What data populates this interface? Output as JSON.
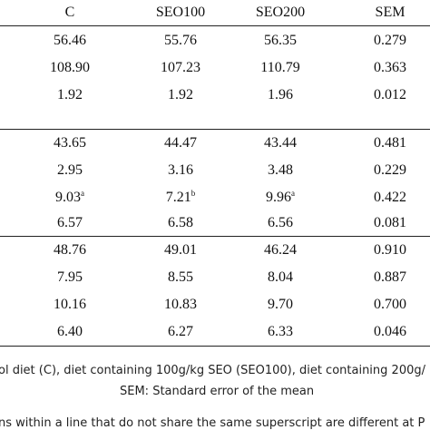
{
  "header": [
    "C",
    "SEO100",
    "SEO200",
    "SEM"
  ],
  "section1": [
    [
      "56.46",
      "55.76",
      "56.35",
      "0.279"
    ],
    [
      "108.90",
      "107.23",
      "110.79",
      "0.363"
    ],
    [
      "1.92",
      "1.92",
      "1.96",
      "0.012"
    ]
  ],
  "section2": [
    [
      "43.65",
      "44.47",
      "43.44",
      "0.481"
    ],
    [
      "2.95",
      "3.16",
      "3.48",
      "0.229"
    ],
    [
      "9.03",
      "7.21",
      "9.96",
      "0.422"
    ],
    [
      "6.57",
      "6.58",
      "6.56",
      "0.081"
    ]
  ],
  "superscripts": {
    "row": [
      "a",
      "b",
      "a"
    ]
  },
  "section3": [
    [
      "48.76",
      "49.01",
      "46.24",
      "0.910"
    ],
    [
      "7.95",
      "8.55",
      "8.04",
      "0.887"
    ],
    [
      "10.16",
      "10.83",
      "9.70",
      "0.700"
    ],
    [
      "6.40",
      "6.27",
      "6.33",
      "0.046"
    ]
  ],
  "footnotes": {
    "line1": "ol diet (C), diet containing 100g/kg SEO (SEO100), diet containing 200g/",
    "line2": "SEM: Standard error of the mean",
    "line3": "ns within a line that do not share the same superscript are different at P"
  }
}
